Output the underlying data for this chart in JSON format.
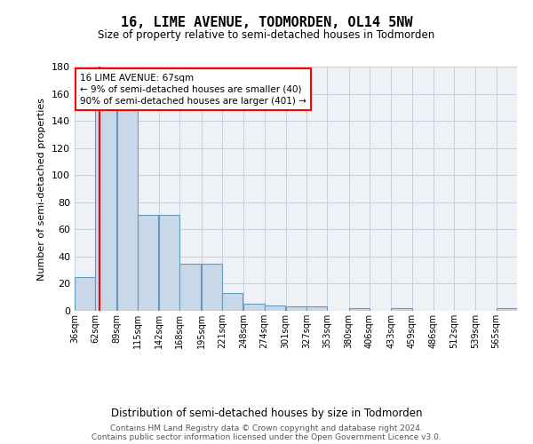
{
  "title_line1": "16, LIME AVENUE, TODMORDEN, OL14 5NW",
  "title_line2": "Size of property relative to semi-detached houses in Todmorden",
  "xlabel": "Distribution of semi-detached houses by size in Todmorden",
  "ylabel": "Number of semi-detached properties",
  "bin_labels": [
    "36sqm",
    "62sqm",
    "89sqm",
    "115sqm",
    "142sqm",
    "168sqm",
    "195sqm",
    "221sqm",
    "248sqm",
    "274sqm",
    "301sqm",
    "327sqm",
    "353sqm",
    "380sqm",
    "406sqm",
    "433sqm",
    "459sqm",
    "486sqm",
    "512sqm",
    "539sqm",
    "565sqm"
  ],
  "bin_edges": [
    36,
    62,
    89,
    115,
    142,
    168,
    195,
    221,
    248,
    274,
    301,
    327,
    353,
    380,
    406,
    433,
    459,
    486,
    512,
    539,
    565
  ],
  "bar_heights": [
    25,
    157,
    148,
    71,
    71,
    35,
    35,
    13,
    5,
    4,
    3,
    3,
    0,
    2,
    0,
    2,
    0,
    0,
    0,
    0,
    2
  ],
  "bar_color": "#c8d8e8",
  "bar_edge_color": "#6699bb",
  "red_line_x": 67,
  "annotation_text": "16 LIME AVENUE: 67sqm\n← 9% of semi-detached houses are smaller (40)\n90% of semi-detached houses are larger (401) →",
  "annotation_box_color": "white",
  "annotation_border_color": "red",
  "ylim": [
    0,
    180
  ],
  "yticks": [
    0,
    20,
    40,
    60,
    80,
    100,
    120,
    140,
    160,
    180
  ],
  "footer_text": "Contains HM Land Registry data © Crown copyright and database right 2024.\nContains public sector information licensed under the Open Government Licence v3.0.",
  "bg_color": "#eef2f7",
  "grid_color": "#c5cfe0"
}
